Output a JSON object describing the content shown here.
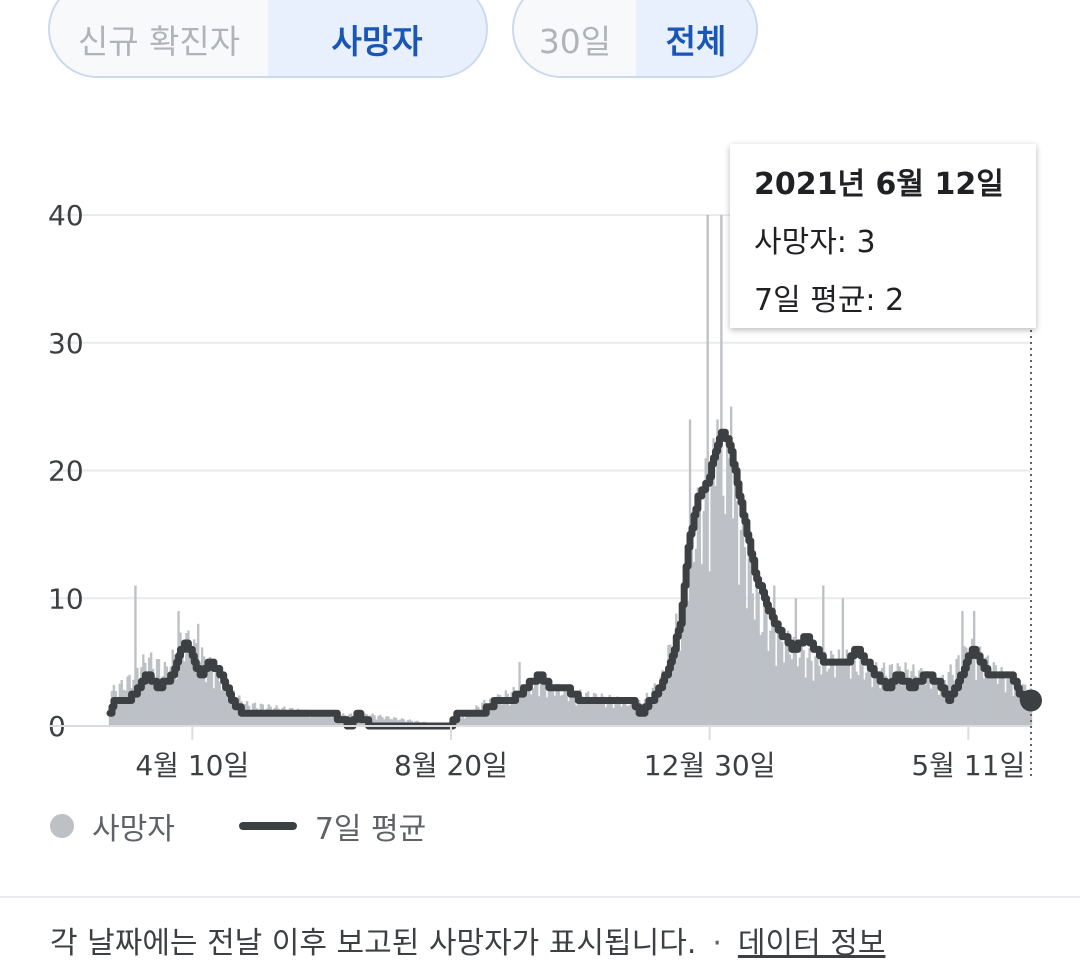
{
  "toggles": {
    "metric": [
      {
        "label": "신규 확진자",
        "active": false
      },
      {
        "label": "사망자",
        "active": true
      }
    ],
    "range": [
      {
        "label": "30일",
        "active": false
      },
      {
        "label": "전체",
        "active": true
      }
    ]
  },
  "tooltip": {
    "date": "2021년 6월 12일",
    "deaths_line": "사망자: 3",
    "avg_line": "7일 평균: 2"
  },
  "legend": {
    "bars_label": "사망자",
    "line_label": "7일 평균"
  },
  "footer": {
    "note": "각 날짜에는 전날 이후 보고된 사망자가 표시됩니다.",
    "separator": "·",
    "link": "데이터 정보"
  },
  "colors": {
    "bars": "#bdc1c6",
    "average_line": "#3c4043",
    "active_toggle_text": "#1a56b5",
    "active_toggle_bg": "#e8f0fe"
  },
  "chart_data": {
    "type": "bar",
    "title": "",
    "xlabel": "",
    "ylabel": "",
    "ylim": [
      0,
      40
    ],
    "y_ticks": [
      0,
      10,
      20,
      30,
      40
    ],
    "x_ticks": [
      "4월 10일",
      "8월 20일",
      "12월 30일",
      "5월 11일"
    ],
    "x_range": [
      "2020-02-28",
      "2021-06-12"
    ],
    "grid": true,
    "legend_position": "bottom-left",
    "series": [
      {
        "name": "7일 평균",
        "kind": "line",
        "points": [
          [
            "2020-02-28",
            1
          ],
          [
            "2020-03-01",
            2
          ],
          [
            "2020-03-08",
            2
          ],
          [
            "2020-03-14",
            3
          ],
          [
            "2020-03-18",
            4
          ],
          [
            "2020-03-24",
            3
          ],
          [
            "2020-03-31",
            4
          ],
          [
            "2020-04-04",
            6
          ],
          [
            "2020-04-07",
            6.5
          ],
          [
            "2020-04-11",
            5
          ],
          [
            "2020-04-14",
            4
          ],
          [
            "2020-04-19",
            5
          ],
          [
            "2020-04-25",
            4
          ],
          [
            "2020-04-30",
            2
          ],
          [
            "2020-05-06",
            1
          ],
          [
            "2020-06-20",
            1
          ],
          [
            "2020-06-30",
            0
          ],
          [
            "2020-07-03",
            1
          ],
          [
            "2020-07-10",
            0
          ],
          [
            "2020-08-20",
            0
          ],
          [
            "2020-08-23",
            1
          ],
          [
            "2020-09-05",
            1
          ],
          [
            "2020-09-12",
            2
          ],
          [
            "2020-09-20",
            2
          ],
          [
            "2020-09-27",
            3
          ],
          [
            "2020-10-04",
            4
          ],
          [
            "2020-10-10",
            3
          ],
          [
            "2020-10-18",
            3
          ],
          [
            "2020-10-25",
            2
          ],
          [
            "2020-11-20",
            2
          ],
          [
            "2020-11-25",
            1
          ],
          [
            "2020-11-30",
            2
          ],
          [
            "2020-12-05",
            3
          ],
          [
            "2020-12-10",
            5
          ],
          [
            "2020-12-15",
            8
          ],
          [
            "2020-12-19",
            14
          ],
          [
            "2020-12-24",
            18
          ],
          [
            "2020-12-29",
            19
          ],
          [
            "2021-01-01",
            21
          ],
          [
            "2021-01-05",
            23
          ],
          [
            "2021-01-09",
            22
          ],
          [
            "2021-01-13",
            19
          ],
          [
            "2021-01-18",
            15
          ],
          [
            "2021-01-22",
            12
          ],
          [
            "2021-01-27",
            10
          ],
          [
            "2021-02-01",
            8
          ],
          [
            "2021-02-06",
            7
          ],
          [
            "2021-02-11",
            6
          ],
          [
            "2021-02-17",
            7
          ],
          [
            "2021-02-22",
            6
          ],
          [
            "2021-02-27",
            5
          ],
          [
            "2021-03-10",
            5
          ],
          [
            "2021-03-15",
            6
          ],
          [
            "2021-03-20",
            5
          ],
          [
            "2021-03-25",
            4
          ],
          [
            "2021-03-31",
            3
          ],
          [
            "2021-04-05",
            4
          ],
          [
            "2021-04-12",
            3
          ],
          [
            "2021-04-20",
            4
          ],
          [
            "2021-04-28",
            3
          ],
          [
            "2021-05-01",
            2
          ],
          [
            "2021-05-05",
            3
          ],
          [
            "2021-05-10",
            5
          ],
          [
            "2021-05-13",
            6
          ],
          [
            "2021-05-17",
            5
          ],
          [
            "2021-05-21",
            4
          ],
          [
            "2021-05-27",
            4
          ],
          [
            "2021-06-01",
            4
          ],
          [
            "2021-06-05",
            3
          ],
          [
            "2021-06-08",
            2
          ],
          [
            "2021-06-12",
            2
          ]
        ]
      }
    ],
    "bars": {
      "name": "사망자",
      "approximate_envelope": [
        [
          "2020-02-28",
          3
        ],
        [
          "2020-03-08",
          4
        ],
        [
          "2020-03-18",
          6
        ],
        [
          "2020-03-28",
          5
        ],
        [
          "2020-04-06",
          8
        ],
        [
          "2020-04-16",
          6
        ],
        [
          "2020-04-26",
          4
        ],
        [
          "2020-05-06",
          2
        ],
        [
          "2020-06-20",
          1
        ],
        [
          "2020-07-10",
          1
        ],
        [
          "2020-08-20",
          0
        ],
        [
          "2020-09-05",
          2
        ],
        [
          "2020-09-20",
          3
        ],
        [
          "2020-10-05",
          4
        ],
        [
          "2020-10-20",
          3
        ],
        [
          "2020-11-25",
          2
        ],
        [
          "2020-12-05",
          4
        ],
        [
          "2020-12-15",
          10
        ],
        [
          "2020-12-22",
          18
        ],
        [
          "2020-12-30",
          22
        ],
        [
          "2021-01-06",
          24
        ],
        [
          "2021-01-15",
          18
        ],
        [
          "2021-01-25",
          10
        ],
        [
          "2021-02-05",
          8
        ],
        [
          "2021-02-20",
          6
        ],
        [
          "2021-03-10",
          6
        ],
        [
          "2021-03-25",
          5
        ],
        [
          "2021-04-10",
          5
        ],
        [
          "2021-04-28",
          4
        ],
        [
          "2021-05-12",
          7
        ],
        [
          "2021-05-25",
          5
        ],
        [
          "2021-06-12",
          3
        ]
      ],
      "spikes": [
        [
          "2020-03-12",
          11
        ],
        [
          "2020-04-03",
          9
        ],
        [
          "2020-04-13",
          8
        ],
        [
          "2020-09-24",
          5
        ],
        [
          "2020-12-20",
          24
        ],
        [
          "2020-12-29",
          40
        ],
        [
          "2021-01-03",
          24
        ],
        [
          "2021-01-05",
          40
        ],
        [
          "2021-01-10",
          25
        ],
        [
          "2021-02-01",
          11
        ],
        [
          "2021-02-12",
          10
        ],
        [
          "2021-02-26",
          11
        ],
        [
          "2021-03-08",
          10
        ],
        [
          "2021-05-08",
          9
        ],
        [
          "2021-05-14",
          9
        ]
      ]
    }
  }
}
